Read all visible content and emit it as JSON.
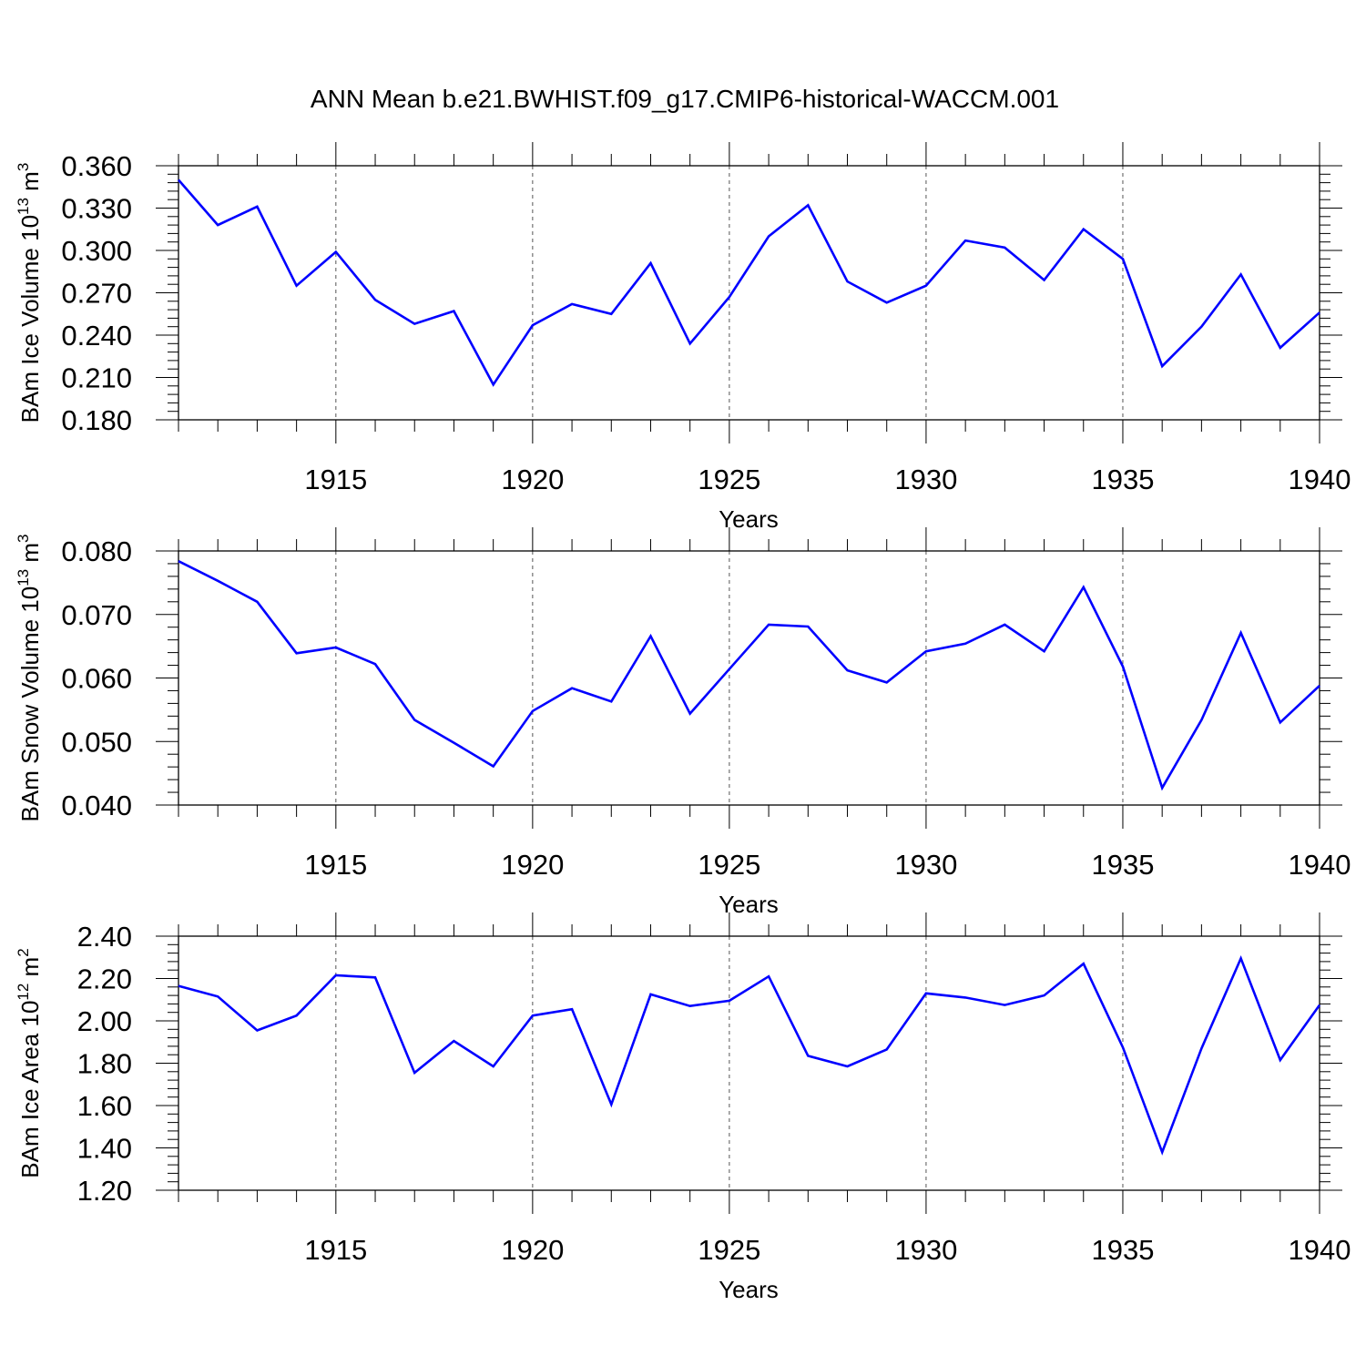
{
  "title": "ANN Mean b.e21.BWHIST.f09_g17.CMIP6-historical-WACCM.001",
  "colors": {
    "line": "#0000ff",
    "axis": "#000000",
    "grid": "#555555"
  },
  "chart_data": [
    {
      "type": "line",
      "ylabel": "BAm Ice Volume",
      "yunit_base": "10",
      "yunit_exp": "13",
      "yunit_m": "m",
      "yunit_pow": "3",
      "xlabel": "Years",
      "xlim": [
        1911,
        1940
      ],
      "ylim": [
        0.18,
        0.36
      ],
      "yticks": [
        "0.360",
        "0.330",
        "0.300",
        "0.270",
        "0.240",
        "0.210",
        "0.180"
      ],
      "xticks": [
        "1915",
        "1920",
        "1925",
        "1930",
        "1935",
        "1940"
      ],
      "grid": "dashed vertical lines at major x ticks",
      "x": [
        1911,
        1912,
        1913,
        1914,
        1915,
        1916,
        1917,
        1918,
        1919,
        1920,
        1921,
        1922,
        1923,
        1924,
        1925,
        1926,
        1927,
        1928,
        1929,
        1930,
        1931,
        1932,
        1933,
        1934,
        1935,
        1936,
        1937,
        1938,
        1939,
        1940
      ],
      "values": [
        0.35,
        0.318,
        0.331,
        0.275,
        0.299,
        0.265,
        0.248,
        0.257,
        0.205,
        0.247,
        0.262,
        0.255,
        0.291,
        0.234,
        0.267,
        0.31,
        0.332,
        0.278,
        0.263,
        0.275,
        0.307,
        0.302,
        0.279,
        0.315,
        0.294,
        0.218,
        0.246,
        0.283,
        0.231,
        0.256
      ]
    },
    {
      "type": "line",
      "ylabel": "BAm Snow Volume",
      "yunit_base": "10",
      "yunit_exp": "13",
      "yunit_m": "m",
      "yunit_pow": "3",
      "xlabel": "Years",
      "xlim": [
        1911,
        1940
      ],
      "ylim": [
        0.04,
        0.08
      ],
      "yticks": [
        "0.080",
        "0.070",
        "0.060",
        "0.050",
        "0.040"
      ],
      "xticks": [
        "1915",
        "1920",
        "1925",
        "1930",
        "1935",
        "1940"
      ],
      "grid": "dashed vertical lines at major x ticks",
      "x": [
        1911,
        1912,
        1913,
        1914,
        1915,
        1916,
        1917,
        1918,
        1919,
        1920,
        1921,
        1922,
        1923,
        1924,
        1925,
        1926,
        1927,
        1928,
        1929,
        1930,
        1931,
        1932,
        1933,
        1934,
        1935,
        1936,
        1937,
        1938,
        1939,
        1940
      ],
      "values": [
        0.0784,
        0.0753,
        0.072,
        0.0639,
        0.0648,
        0.0622,
        0.0534,
        0.0498,
        0.0461,
        0.0548,
        0.0584,
        0.0563,
        0.0666,
        0.0544,
        0.0614,
        0.0684,
        0.0681,
        0.0612,
        0.0593,
        0.0642,
        0.0654,
        0.0684,
        0.0642,
        0.0743,
        0.0618,
        0.0427,
        0.0534,
        0.0671,
        0.053,
        0.0588
      ]
    },
    {
      "type": "line",
      "ylabel": "BAm Ice Area",
      "yunit_base": "10",
      "yunit_exp": "12",
      "yunit_m": "m",
      "yunit_pow": "2",
      "xlabel": "Years",
      "xlim": [
        1911,
        1940
      ],
      "ylim": [
        1.2,
        2.4
      ],
      "yticks": [
        "2.40",
        "2.20",
        "2.00",
        "1.80",
        "1.60",
        "1.40",
        "1.20"
      ],
      "xticks": [
        "1915",
        "1920",
        "1925",
        "1930",
        "1935",
        "1940"
      ],
      "grid": "dashed vertical lines at major x ticks",
      "x": [
        1911,
        1912,
        1913,
        1914,
        1915,
        1916,
        1917,
        1918,
        1919,
        1920,
        1921,
        1922,
        1923,
        1924,
        1925,
        1926,
        1927,
        1928,
        1929,
        1930,
        1931,
        1932,
        1933,
        1934,
        1935,
        1936,
        1937,
        1938,
        1939,
        1940
      ],
      "values": [
        2.165,
        2.115,
        1.955,
        2.025,
        2.215,
        2.205,
        1.755,
        1.905,
        1.785,
        2.025,
        2.055,
        1.605,
        2.125,
        2.07,
        2.095,
        2.21,
        1.835,
        1.785,
        1.865,
        2.13,
        2.11,
        2.075,
        2.12,
        2.27,
        1.875,
        1.38,
        1.87,
        2.295,
        1.815,
        2.075
      ]
    }
  ]
}
